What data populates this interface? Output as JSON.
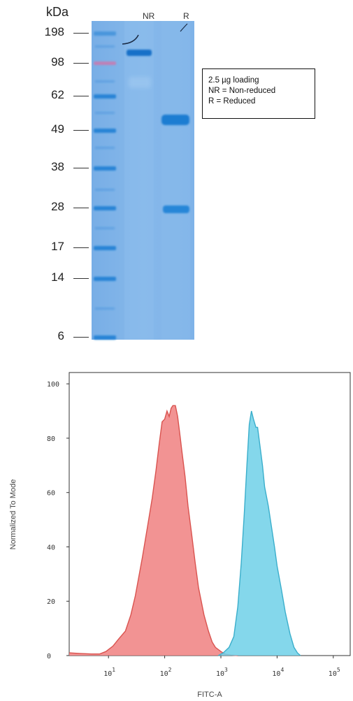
{
  "gel": {
    "unit_label": "kDa",
    "lanes": [
      "NR",
      "R"
    ],
    "markers": [
      "198",
      "98",
      "62",
      "49",
      "38",
      "28",
      "17",
      "14",
      "6"
    ],
    "legend": [
      "2.5 µg loading",
      "NR = Non-reduced",
      "R = Reduced"
    ],
    "colors": {
      "gel": "#7fb1e6",
      "band": "#1e7fd4",
      "ladder_pink": "#c87ab0"
    }
  },
  "chart_data": {
    "type": "area",
    "xlabel": "FITC-A",
    "ylabel": "Normalized To Mode",
    "x_scale": "log",
    "xlim": [
      2,
      200000
    ],
    "ylim": [
      0,
      100
    ],
    "x_ticks": [
      "10",
      "10",
      "10",
      "10",
      "10"
    ],
    "x_tick_exponents": [
      "1",
      "2",
      "3",
      "4",
      "5"
    ],
    "y_ticks": [
      "0",
      "20",
      "40",
      "60",
      "80",
      "100"
    ],
    "series": [
      {
        "color": "#f08080",
        "edge": "#d9534f",
        "points": [
          [
            2,
            1
          ],
          [
            3,
            0.8
          ],
          [
            5,
            0.6
          ],
          [
            7,
            0.6
          ],
          [
            9,
            1.5
          ],
          [
            12,
            3.5
          ],
          [
            15,
            6
          ],
          [
            20,
            9
          ],
          [
            25,
            15
          ],
          [
            30,
            22
          ],
          [
            40,
            36
          ],
          [
            50,
            48
          ],
          [
            60,
            58
          ],
          [
            70,
            68
          ],
          [
            80,
            78
          ],
          [
            90,
            86
          ],
          [
            100,
            87
          ],
          [
            110,
            90
          ],
          [
            120,
            88
          ],
          [
            130,
            91
          ],
          [
            140,
            92
          ],
          [
            155,
            92
          ],
          [
            170,
            88
          ],
          [
            190,
            80
          ],
          [
            200,
            76
          ],
          [
            230,
            66
          ],
          [
            260,
            55
          ],
          [
            300,
            45
          ],
          [
            350,
            34
          ],
          [
            400,
            25
          ],
          [
            500,
            15
          ],
          [
            600,
            9
          ],
          [
            700,
            5
          ],
          [
            800,
            3
          ],
          [
            1000,
            1.5
          ],
          [
            1200,
            0.5
          ],
          [
            1500,
            0.2
          ],
          [
            2000,
            0
          ]
        ]
      },
      {
        "color": "#6fd0e8",
        "edge": "#3aaecb",
        "points": [
          [
            900,
            0
          ],
          [
            1100,
            1
          ],
          [
            1400,
            3
          ],
          [
            1700,
            7
          ],
          [
            2000,
            18
          ],
          [
            2300,
            34
          ],
          [
            2600,
            52
          ],
          [
            2900,
            70
          ],
          [
            3200,
            85
          ],
          [
            3500,
            90
          ],
          [
            3800,
            87
          ],
          [
            4200,
            84
          ],
          [
            4500,
            84
          ],
          [
            4900,
            78
          ],
          [
            5500,
            70
          ],
          [
            6000,
            62
          ],
          [
            7000,
            55
          ],
          [
            8000,
            47
          ],
          [
            9000,
            40
          ],
          [
            10000,
            33
          ],
          [
            12000,
            24
          ],
          [
            14000,
            16
          ],
          [
            17000,
            8
          ],
          [
            20000,
            3
          ],
          [
            23000,
            1
          ],
          [
            26000,
            0
          ]
        ]
      }
    ]
  }
}
